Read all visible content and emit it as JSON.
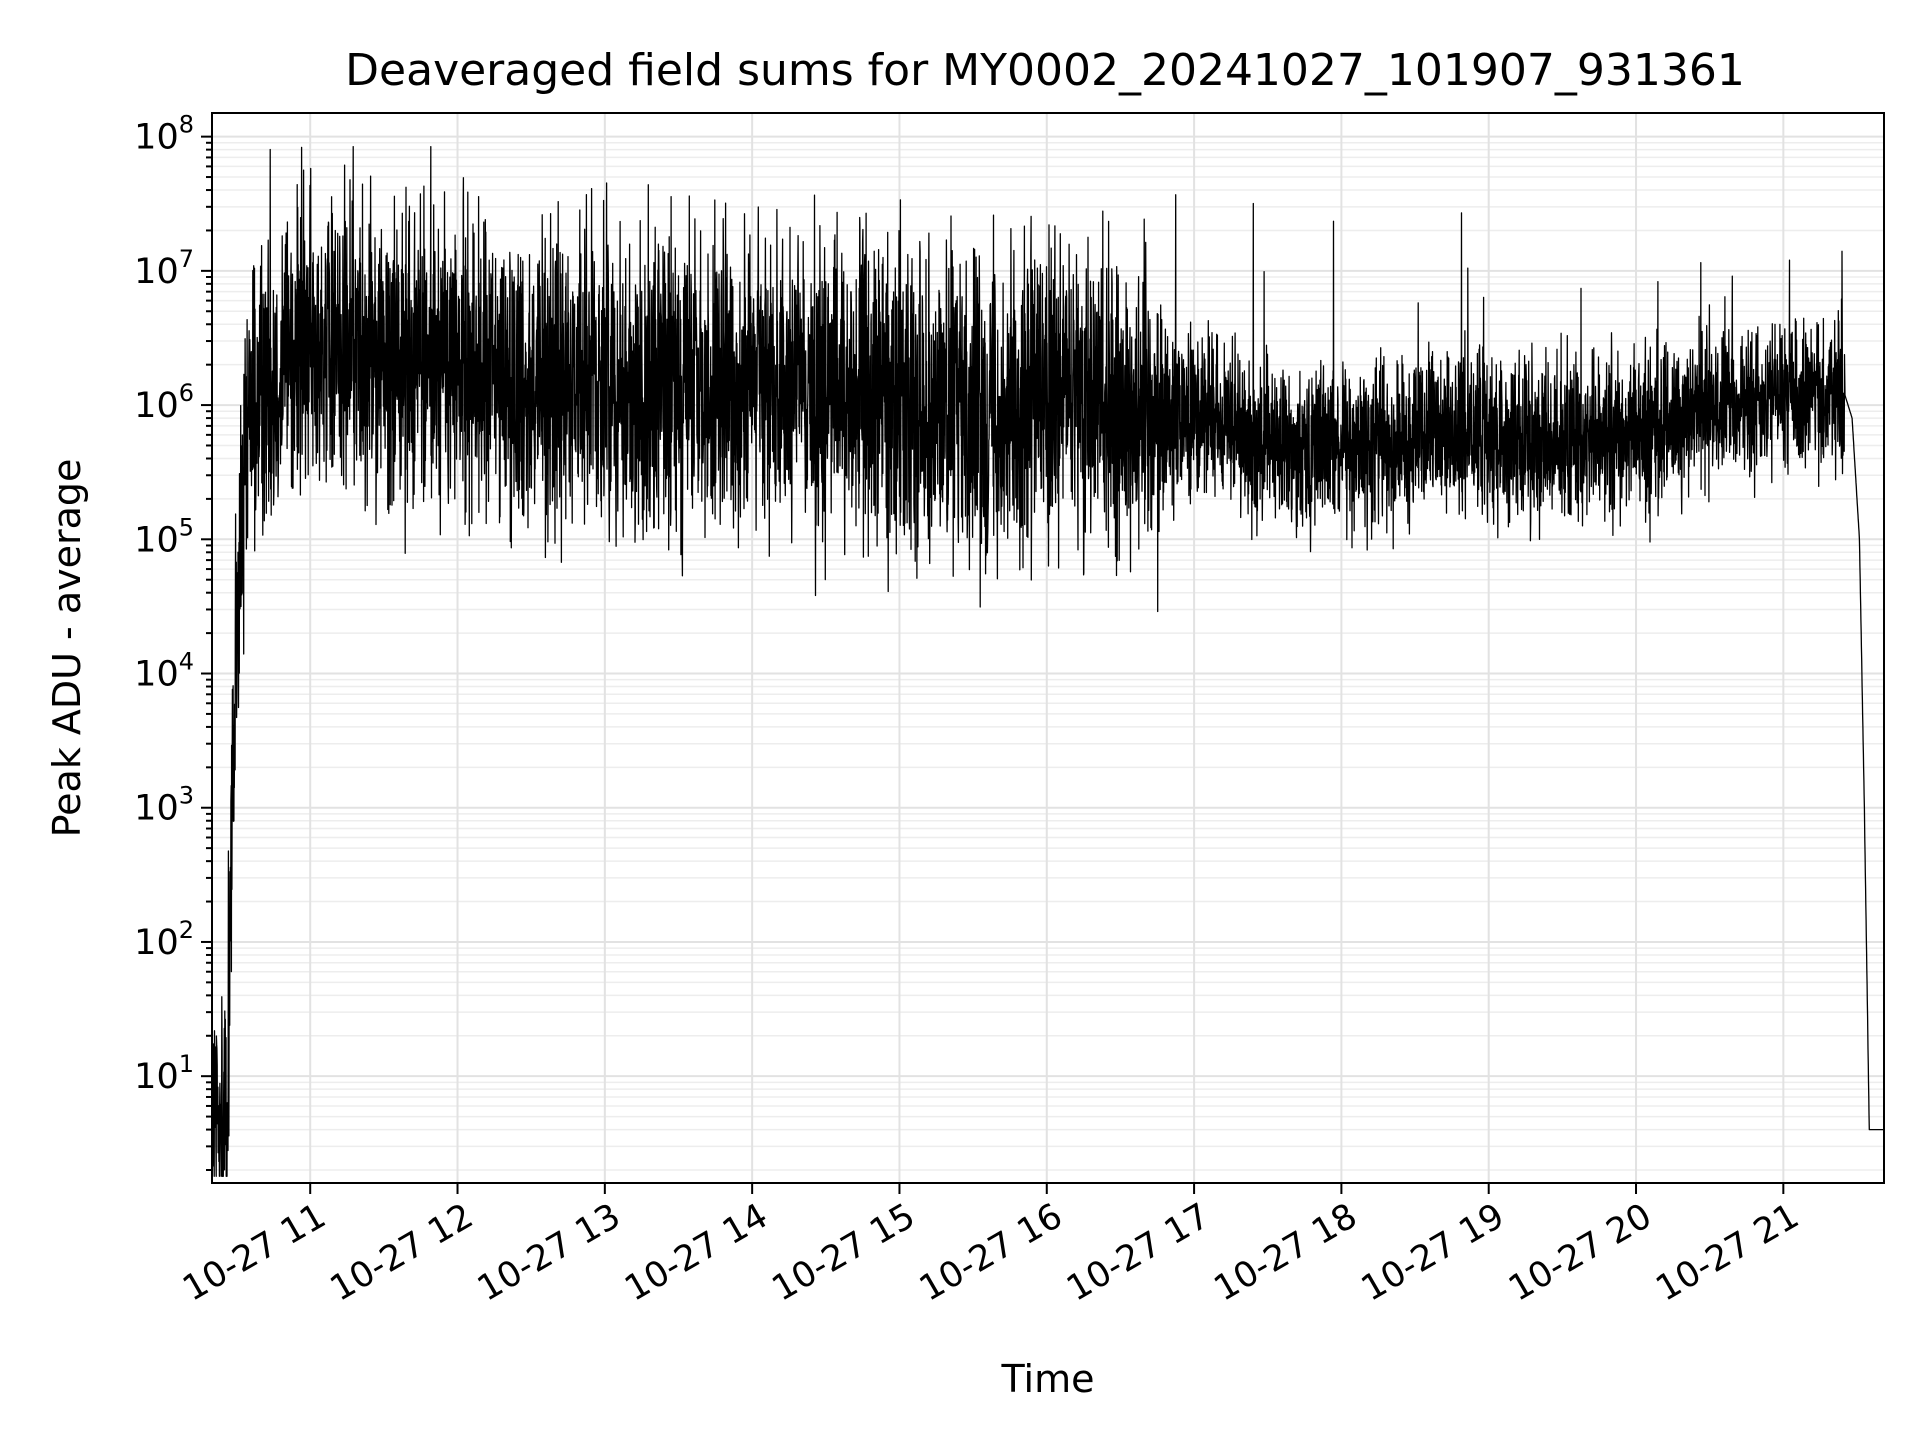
{
  "chart_data": {
    "type": "line",
    "title": "Deaveraged field sums for MY0002_20241027_101907_931361",
    "xlabel": "Time",
    "ylabel": "Peak ADU - average",
    "y_scale": "log",
    "ylim": [
      1.6,
      150000000
    ],
    "xlim": [
      "10-27 10:20",
      "10-27 21:41"
    ],
    "grid": true,
    "y_ticks": [
      {
        "base": "10",
        "exp": "1",
        "value": 10
      },
      {
        "base": "10",
        "exp": "2",
        "value": 100
      },
      {
        "base": "10",
        "exp": "3",
        "value": 1000
      },
      {
        "base": "10",
        "exp": "4",
        "value": 10000
      },
      {
        "base": "10",
        "exp": "5",
        "value": 100000
      },
      {
        "base": "10",
        "exp": "6",
        "value": 1000000
      },
      {
        "base": "10",
        "exp": "7",
        "value": 10000000
      },
      {
        "base": "10",
        "exp": "8",
        "value": 100000000
      }
    ],
    "x_ticks": [
      "10-27 11",
      "10-27 12",
      "10-27 13",
      "10-27 14",
      "10-27 15",
      "10-27 16",
      "10-27 17",
      "10-27 18",
      "10-27 19",
      "10-27 20",
      "10-27 21"
    ],
    "series": [
      {
        "x": [
          "10-27 10:20",
          "10-27 10:26",
          "10-27 10:27",
          "10-27 10:29",
          "10-27 10:32",
          "10-27 10:36",
          "10-27 10:42",
          "10-27 10:50",
          "10-27 11:00",
          "10-27 11:30",
          "10-27 12:00",
          "10-27 12:30",
          "10-27 13:00",
          "10-27 13:30",
          "10-27 14:00",
          "10-27 14:30",
          "10-27 15:00",
          "10-27 15:30",
          "10-27 16:00",
          "10-27 16:30",
          "10-27 17:00",
          "10-27 17:30",
          "10-27 18:00",
          "10-27 18:30",
          "10-27 19:00",
          "10-27 19:30",
          "10-27 20:00",
          "10-27 20:30",
          "10-27 21:00",
          "10-27 21:25",
          "10-27 21:28",
          "10-27 21:31",
          "10-27 21:33",
          "10-27 21:35",
          "10-27 21:41"
        ],
        "y": [
          4,
          4,
          80,
          4000,
          100000,
          1000000,
          1500000,
          2500000,
          3000000,
          2500000,
          2000000,
          1500000,
          1500000,
          1200000,
          1500000,
          1300000,
          1200000,
          1000000,
          1100000,
          1000000,
          900000,
          500000,
          500000,
          550000,
          600000,
          500000,
          600000,
          1000000,
          1200000,
          1200000,
          800000,
          100000,
          1000,
          4,
          4
        ]
      }
    ]
  }
}
